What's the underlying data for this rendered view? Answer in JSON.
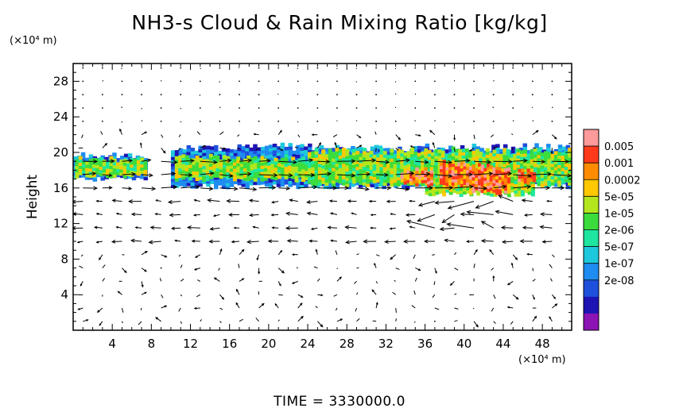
{
  "chart_data": {
    "type": "heatmap",
    "title": "NH3-s Cloud & Rain Mixing Ratio [kg/kg]",
    "ylabel": "Height",
    "x_unit": "(×10⁴ m)",
    "y_unit": "(×10⁴ m)",
    "xlim": [
      0,
      51
    ],
    "ylim": [
      0,
      30
    ],
    "x_ticks": [
      4,
      8,
      12,
      16,
      20,
      24,
      28,
      32,
      36,
      40,
      44,
      48
    ],
    "y_ticks": [
      4,
      8,
      12,
      16,
      20,
      24,
      28
    ],
    "colorbar": {
      "labels": [
        "0.005",
        "0.001",
        "0.0002",
        "5e-05",
        "1e-05",
        "2e-06",
        "5e-07",
        "1e-07",
        "2e-08"
      ],
      "colors": [
        "#ff9a9a",
        "#ff3a1a",
        "#ff8c00",
        "#ffc800",
        "#b4e61e",
        "#3cdc3c",
        "#1ee6a0",
        "#1ec8dc",
        "#1e8cf0",
        "#1e50dc",
        "#1e14b4",
        "#8c14b4"
      ]
    },
    "cloud_regions": [
      {
        "x": [
          0,
          7.5
        ],
        "y": [
          17.2,
          19.3
        ],
        "level": "1e-05 to 5e-05"
      },
      {
        "x": [
          10,
          51
        ],
        "y": [
          16.2,
          20.5
        ],
        "level": "2e-06 to 5e-05"
      },
      {
        "x": [
          33,
          47
        ],
        "y": [
          15.5,
          18.8
        ],
        "level": "0.0002 to 0.005"
      }
    ],
    "footer": "TIME = 3330000.0",
    "grid": false,
    "legend": "colorbar right"
  }
}
